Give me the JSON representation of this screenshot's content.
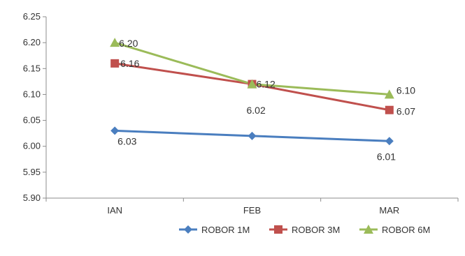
{
  "chart_data": {
    "type": "line",
    "title": "",
    "xlabel": "",
    "ylabel": "",
    "categories": [
      "IAN",
      "FEB",
      "MAR"
    ],
    "ylim": [
      5.9,
      6.25
    ],
    "yticks": [
      "5.90",
      "5.95",
      "6.00",
      "6.05",
      "6.10",
      "6.15",
      "6.20",
      "6.25"
    ],
    "grid": false,
    "legend_position": "bottom-right",
    "series": [
      {
        "name": "ROBOR 1M",
        "values": [
          6.03,
          6.02,
          6.01
        ],
        "labels": [
          "6.03",
          "6.02",
          "6.01"
        ],
        "color": "#4a7ebf",
        "marker": "diamond"
      },
      {
        "name": "ROBOR 3M",
        "values": [
          6.16,
          6.12,
          6.07
        ],
        "labels": [
          "6.16",
          "",
          "6.07"
        ],
        "color": "#c0504d",
        "marker": "square"
      },
      {
        "name": "ROBOR 6M",
        "values": [
          6.2,
          6.12,
          6.1
        ],
        "labels": [
          "6.20",
          "6.12",
          "6.10"
        ],
        "color": "#9bbb59",
        "marker": "triangle"
      }
    ]
  }
}
